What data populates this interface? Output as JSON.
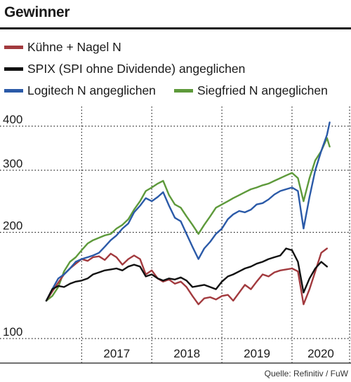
{
  "header": {
    "title": "Gewinner"
  },
  "source": "Quelle: Refinitiv / FuW",
  "colors": {
    "kuehne": "#a23a3e",
    "spix": "#111111",
    "logitech": "#2b5aa8",
    "siegfried": "#5e9a3b",
    "grid": "#222222"
  },
  "chart_data": {
    "type": "line",
    "title": "Gewinner",
    "yscale": "log",
    "ylim": [
      100,
      420
    ],
    "yticks": [
      100,
      200,
      300,
      400
    ],
    "xlim": [
      "2016-07-01",
      "2020-06-01"
    ],
    "xticks": [
      "2017",
      "2018",
      "2019",
      "2020"
    ],
    "grid": true,
    "legend": "top",
    "series": [
      {
        "name": "Kühne + Nagel N",
        "color": "#a23a3e",
        "points": [
          [
            "2016-07-01",
            128
          ],
          [
            "2016-08-01",
            136
          ],
          [
            "2016-09-01",
            144
          ],
          [
            "2016-10-01",
            152
          ],
          [
            "2016-11-01",
            158
          ],
          [
            "2016-12-01",
            163
          ],
          [
            "2017-01-01",
            168
          ],
          [
            "2017-02-01",
            166
          ],
          [
            "2017-03-01",
            170
          ],
          [
            "2017-04-01",
            171
          ],
          [
            "2017-05-01",
            167
          ],
          [
            "2017-06-01",
            174
          ],
          [
            "2017-07-01",
            170
          ],
          [
            "2017-08-01",
            162
          ],
          [
            "2017-09-01",
            168
          ],
          [
            "2017-10-01",
            172
          ],
          [
            "2017-11-01",
            168
          ],
          [
            "2017-12-01",
            152
          ],
          [
            "2018-01-01",
            156
          ],
          [
            "2018-02-01",
            148
          ],
          [
            "2018-03-01",
            145
          ],
          [
            "2018-04-01",
            147
          ],
          [
            "2018-05-01",
            143
          ],
          [
            "2018-06-01",
            145
          ],
          [
            "2018-07-01",
            140
          ],
          [
            "2018-08-01",
            132
          ],
          [
            "2018-09-01",
            125
          ],
          [
            "2018-10-01",
            130
          ],
          [
            "2018-11-01",
            131
          ],
          [
            "2018-12-01",
            129
          ],
          [
            "2019-01-01",
            132
          ],
          [
            "2019-02-01",
            133
          ],
          [
            "2019-03-01",
            128
          ],
          [
            "2019-04-01",
            135
          ],
          [
            "2019-05-01",
            142
          ],
          [
            "2019-06-01",
            138
          ],
          [
            "2019-07-01",
            145
          ],
          [
            "2019-08-01",
            152
          ],
          [
            "2019-09-01",
            150
          ],
          [
            "2019-10-01",
            154
          ],
          [
            "2019-11-01",
            156
          ],
          [
            "2019-12-01",
            157
          ],
          [
            "2020-01-01",
            158
          ],
          [
            "2020-02-01",
            155
          ],
          [
            "2020-03-01",
            125
          ],
          [
            "2020-04-01",
            138
          ],
          [
            "2020-05-01",
            155
          ],
          [
            "2020-06-01",
            175
          ],
          [
            "2020-07-01",
            180
          ]
        ]
      },
      {
        "name": "SPIX (SPI ohne Dividende) angeglichen",
        "color": "#111111",
        "points": [
          [
            "2016-07-01",
            128
          ],
          [
            "2016-08-01",
            138
          ],
          [
            "2016-09-01",
            141
          ],
          [
            "2016-10-01",
            140
          ],
          [
            "2016-11-01",
            143
          ],
          [
            "2016-12-01",
            145
          ],
          [
            "2017-01-01",
            146
          ],
          [
            "2017-02-01",
            148
          ],
          [
            "2017-03-01",
            152
          ],
          [
            "2017-04-01",
            154
          ],
          [
            "2017-05-01",
            156
          ],
          [
            "2017-06-01",
            157
          ],
          [
            "2017-07-01",
            158
          ],
          [
            "2017-08-01",
            156
          ],
          [
            "2017-09-01",
            160
          ],
          [
            "2017-10-01",
            162
          ],
          [
            "2017-11-01",
            160
          ],
          [
            "2017-12-01",
            150
          ],
          [
            "2018-01-01",
            152
          ],
          [
            "2018-02-01",
            148
          ],
          [
            "2018-03-01",
            146
          ],
          [
            "2018-04-01",
            148
          ],
          [
            "2018-05-01",
            147
          ],
          [
            "2018-06-01",
            149
          ],
          [
            "2018-07-01",
            146
          ],
          [
            "2018-08-01",
            140
          ],
          [
            "2018-09-01",
            141
          ],
          [
            "2018-10-01",
            142
          ],
          [
            "2018-11-01",
            140
          ],
          [
            "2018-12-01",
            138
          ],
          [
            "2019-01-01",
            145
          ],
          [
            "2019-02-01",
            150
          ],
          [
            "2019-03-01",
            152
          ],
          [
            "2019-04-01",
            155
          ],
          [
            "2019-05-01",
            158
          ],
          [
            "2019-06-01",
            160
          ],
          [
            "2019-07-01",
            163
          ],
          [
            "2019-08-01",
            165
          ],
          [
            "2019-09-01",
            168
          ],
          [
            "2019-10-01",
            170
          ],
          [
            "2019-11-01",
            172
          ],
          [
            "2019-12-01",
            180
          ],
          [
            "2020-01-01",
            178
          ],
          [
            "2020-02-01",
            165
          ],
          [
            "2020-03-01",
            135
          ],
          [
            "2020-04-01",
            148
          ],
          [
            "2020-05-01",
            158
          ],
          [
            "2020-06-01",
            165
          ],
          [
            "2020-07-01",
            160
          ]
        ]
      },
      {
        "name": "Logitech N angeglichen",
        "color": "#2b5aa8",
        "points": [
          [
            "2016-07-01",
            128
          ],
          [
            "2016-08-01",
            138
          ],
          [
            "2016-09-01",
            148
          ],
          [
            "2016-10-01",
            152
          ],
          [
            "2016-11-01",
            158
          ],
          [
            "2016-12-01",
            165
          ],
          [
            "2017-01-01",
            168
          ],
          [
            "2017-02-01",
            170
          ],
          [
            "2017-03-01",
            172
          ],
          [
            "2017-04-01",
            175
          ],
          [
            "2017-05-01",
            182
          ],
          [
            "2017-06-01",
            190
          ],
          [
            "2017-07-01",
            196
          ],
          [
            "2017-08-01",
            205
          ],
          [
            "2017-09-01",
            212
          ],
          [
            "2017-10-01",
            228
          ],
          [
            "2017-11-01",
            238
          ],
          [
            "2017-12-01",
            250
          ],
          [
            "2018-01-01",
            245
          ],
          [
            "2018-02-01",
            252
          ],
          [
            "2018-03-01",
            260
          ],
          [
            "2018-04-01",
            238
          ],
          [
            "2018-05-01",
            220
          ],
          [
            "2018-06-01",
            215
          ],
          [
            "2018-07-01",
            198
          ],
          [
            "2018-08-01",
            182
          ],
          [
            "2018-09-01",
            168
          ],
          [
            "2018-10-01",
            180
          ],
          [
            "2018-11-01",
            188
          ],
          [
            "2018-12-01",
            198
          ],
          [
            "2019-01-01",
            205
          ],
          [
            "2019-02-01",
            218
          ],
          [
            "2019-03-01",
            225
          ],
          [
            "2019-04-01",
            230
          ],
          [
            "2019-05-01",
            228
          ],
          [
            "2019-06-01",
            232
          ],
          [
            "2019-07-01",
            240
          ],
          [
            "2019-08-01",
            242
          ],
          [
            "2019-09-01",
            248
          ],
          [
            "2019-10-01",
            256
          ],
          [
            "2019-11-01",
            262
          ],
          [
            "2019-12-01",
            265
          ],
          [
            "2020-01-01",
            268
          ],
          [
            "2020-02-01",
            262
          ],
          [
            "2020-03-01",
            205
          ],
          [
            "2020-04-01",
            252
          ],
          [
            "2020-05-01",
            300
          ],
          [
            "2020-06-01",
            340
          ],
          [
            "2020-07-01",
            378
          ],
          [
            "2020-07-15",
            410
          ]
        ]
      },
      {
        "name": "Siegfried N angeglichen",
        "color": "#5e9a3b",
        "points": [
          [
            "2016-07-01",
            128
          ],
          [
            "2016-08-01",
            132
          ],
          [
            "2016-09-01",
            140
          ],
          [
            "2016-10-01",
            155
          ],
          [
            "2016-11-01",
            165
          ],
          [
            "2016-12-01",
            170
          ],
          [
            "2017-01-01",
            178
          ],
          [
            "2017-02-01",
            186
          ],
          [
            "2017-03-01",
            190
          ],
          [
            "2017-04-01",
            193
          ],
          [
            "2017-05-01",
            196
          ],
          [
            "2017-06-01",
            198
          ],
          [
            "2017-07-01",
            205
          ],
          [
            "2017-08-01",
            210
          ],
          [
            "2017-09-01",
            218
          ],
          [
            "2017-10-01",
            232
          ],
          [
            "2017-11-01",
            245
          ],
          [
            "2017-12-01",
            262
          ],
          [
            "2018-01-01",
            268
          ],
          [
            "2018-02-01",
            275
          ],
          [
            "2018-03-01",
            280
          ],
          [
            "2018-04-01",
            255
          ],
          [
            "2018-05-01",
            240
          ],
          [
            "2018-06-01",
            235
          ],
          [
            "2018-07-01",
            222
          ],
          [
            "2018-08-01",
            210
          ],
          [
            "2018-09-01",
            198
          ],
          [
            "2018-10-01",
            210
          ],
          [
            "2018-11-01",
            222
          ],
          [
            "2018-12-01",
            235
          ],
          [
            "2019-01-01",
            240
          ],
          [
            "2019-02-01",
            245
          ],
          [
            "2019-03-01",
            250
          ],
          [
            "2019-04-01",
            255
          ],
          [
            "2019-05-01",
            260
          ],
          [
            "2019-06-01",
            265
          ],
          [
            "2019-07-01",
            268
          ],
          [
            "2019-08-01",
            272
          ],
          [
            "2019-09-01",
            275
          ],
          [
            "2019-10-01",
            280
          ],
          [
            "2019-11-01",
            285
          ],
          [
            "2019-12-01",
            290
          ],
          [
            "2020-01-01",
            295
          ],
          [
            "2020-02-01",
            285
          ],
          [
            "2020-03-01",
            245
          ],
          [
            "2020-04-01",
            285
          ],
          [
            "2020-05-01",
            320
          ],
          [
            "2020-06-01",
            340
          ],
          [
            "2020-07-01",
            370
          ],
          [
            "2020-07-15",
            350
          ]
        ]
      }
    ]
  }
}
